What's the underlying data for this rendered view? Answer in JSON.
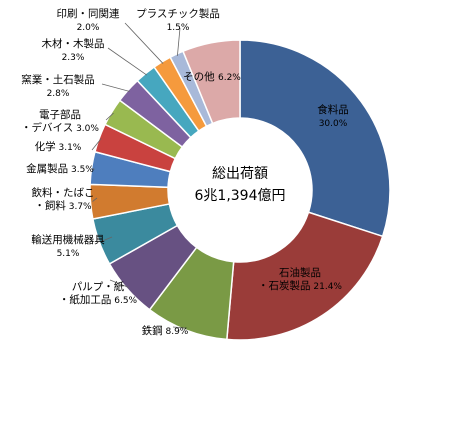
{
  "chart_data": {
    "type": "pie",
    "style": "donut",
    "center_title": "総出荷額",
    "center_value": "6兆1,394億円",
    "labels_inside_color_first": "#000000",
    "slices": [
      {
        "name": "食料品",
        "pct_label": "30.0%",
        "value": 30.0,
        "color": "#3C6195"
      },
      {
        "name": "石油製品・石炭製品",
        "name_lines": [
          "石油製品",
          "・石炭製品"
        ],
        "pct_label": "21.4%",
        "value": 21.4,
        "color": "#9A3C39"
      },
      {
        "name": "鉄鋼",
        "pct_label": "8.9%",
        "value": 8.9,
        "color": "#7A9A45"
      },
      {
        "name": "パルプ・紙・紙加工品",
        "name_lines": [
          "パルプ・紙",
          "・紙加工品"
        ],
        "pct_label": "6.5%",
        "value": 6.5,
        "color": "#675182"
      },
      {
        "name": "輸送用機械器具",
        "pct_label": "5.1%",
        "value": 5.1,
        "color": "#3B8A9E"
      },
      {
        "name": "飲料・たばこ・飼料",
        "name_lines": [
          "飲料・たばこ",
          "・飼料"
        ],
        "pct_label": "3.7%",
        "value": 3.7,
        "color": "#D17B2F"
      },
      {
        "name": "金属製品",
        "pct_label": "3.5%",
        "value": 3.5,
        "color": "#4E7EBE"
      },
      {
        "name": "化学",
        "pct_label": "3.1%",
        "value": 3.1,
        "color": "#C9423F"
      },
      {
        "name": "電子部品・デバイス",
        "name_lines": [
          "電子部品",
          "・デバイス"
        ],
        "pct_label": "3.0%",
        "value": 3.0,
        "color": "#99B950"
      },
      {
        "name": "窯業・土石製品",
        "pct_label": "2.8%",
        "value": 2.8,
        "color": "#7E62A0"
      },
      {
        "name": "木材・木製品",
        "pct_label": "2.3%",
        "value": 2.3,
        "color": "#46A7BF"
      },
      {
        "name": "印刷・同関連",
        "pct_label": "2.0%",
        "value": 2.0,
        "color": "#F59A3D"
      },
      {
        "name": "プラスチック製品",
        "pct_label": "1.5%",
        "value": 1.5,
        "color": "#A8B9D9"
      },
      {
        "name": "その他",
        "pct_label": "6.2%",
        "value": 6.2,
        "color": "#DCA9A8"
      }
    ]
  }
}
